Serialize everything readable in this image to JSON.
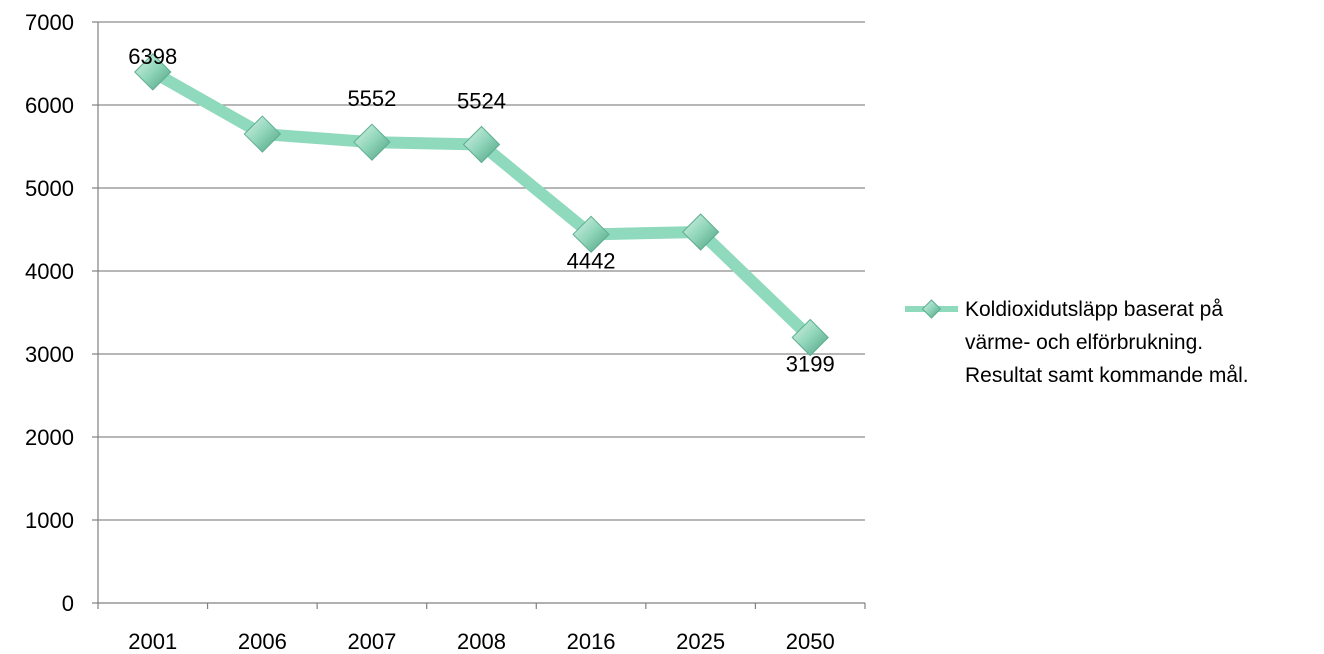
{
  "chart_data": {
    "type": "line",
    "categories": [
      "2001",
      "2006",
      "2007",
      "2008",
      "2016",
      "2025",
      "2050"
    ],
    "series": [
      {
        "name": "Koldioxidutsläpp baserat på värme- och elförbrukning. Resultat samt kommande mål.",
        "values": [
          6398,
          5650,
          5552,
          5524,
          4442,
          4470,
          3199
        ],
        "data_labels": [
          "6398",
          "",
          "5552",
          "5524",
          "4442",
          "",
          "3199"
        ],
        "color": "#8fd9bd",
        "marker_color": "#7fcfb0"
      }
    ],
    "legend": {
      "position": "right",
      "lines": [
        "Koldioxidutsläpp baserat på",
        "värme- och elförbrukning.",
        "Resultat samt kommande mål."
      ]
    },
    "ylim": [
      0,
      7000
    ],
    "yticks": [
      "0",
      "1000",
      "2000",
      "3000",
      "4000",
      "5000",
      "6000",
      "7000"
    ],
    "grid": true,
    "title": "",
    "xlabel": "",
    "ylabel": ""
  }
}
